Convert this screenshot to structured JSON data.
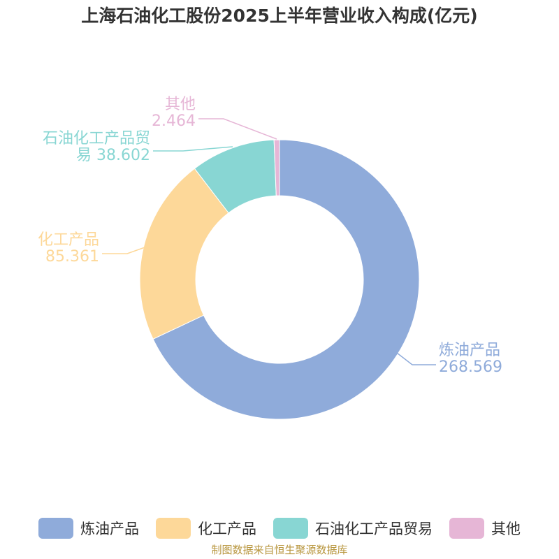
{
  "chart_data": {
    "type": "pie",
    "title": "上海石油化工股份2025上半年营业收入构成(亿元)",
    "variant": "donut",
    "slices": [
      {
        "name": "炼油产品",
        "value": 268.569,
        "value_label": "268.569",
        "color": "#8fabda"
      },
      {
        "name": "化工产品",
        "value": 85.361,
        "value_label": "85.361",
        "color": "#fdd899"
      },
      {
        "name": "石油化工产品贸易",
        "value": 38.602,
        "value_label": "38.602",
        "color": "#88d6d3"
      },
      {
        "name": "其他",
        "value": 2.464,
        "value_label": "2.464",
        "color": "#e6b6d6"
      }
    ],
    "legend_position": "bottom"
  },
  "footer": {
    "source": "制图数据来自恒生聚源数据库"
  }
}
